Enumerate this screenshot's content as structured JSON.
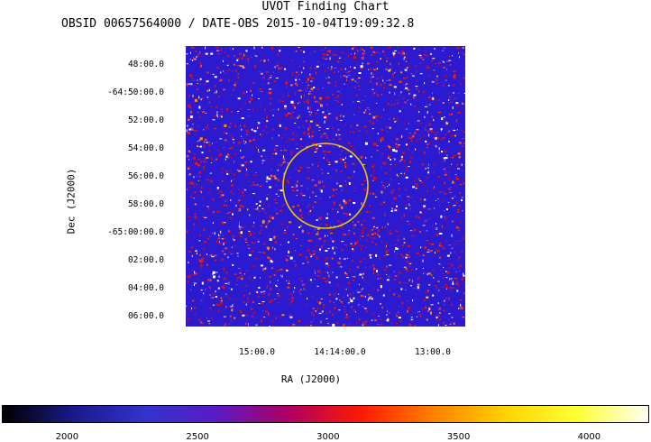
{
  "title": "UVOT Finding Chart",
  "subtitle": "OBSID 00657564000 / DATE-OBS 2015-10-04T19:09:32.8",
  "chart_data": {
    "type": "heatmap",
    "title": "UVOT Finding Chart",
    "subtitle": "OBSID 00657564000 / DATE-OBS 2015-10-04T19:09:32.8",
    "xlabel": "RA (J2000)",
    "ylabel": "Dec (J2000)",
    "x_ticks": [
      "15:00.0",
      "14:14:00.0",
      "13:00.0"
    ],
    "y_ticks": [
      "48:00.0",
      "-64:50:00.0",
      "52:00.0",
      "54:00.0",
      "56:00.0",
      "58:00.0",
      "-65:00:00.0",
      "02:00.0",
      "04:00.0",
      "06:00.0"
    ],
    "colorbar": {
      "ticks": [
        2000,
        2500,
        3000,
        3500,
        4000
      ],
      "range": [
        1750,
        4230
      ],
      "colormap": [
        "#000000",
        "#1a1a8c",
        "#3333cc",
        "#5c1ac4",
        "#b00060",
        "#ff1a00",
        "#ff8000",
        "#ffd200",
        "#ffff33",
        "#fffff5"
      ]
    },
    "region": {
      "shape": "circle",
      "color": "#e8c800"
    },
    "field_dominant_color": "#2b1ad0"
  }
}
